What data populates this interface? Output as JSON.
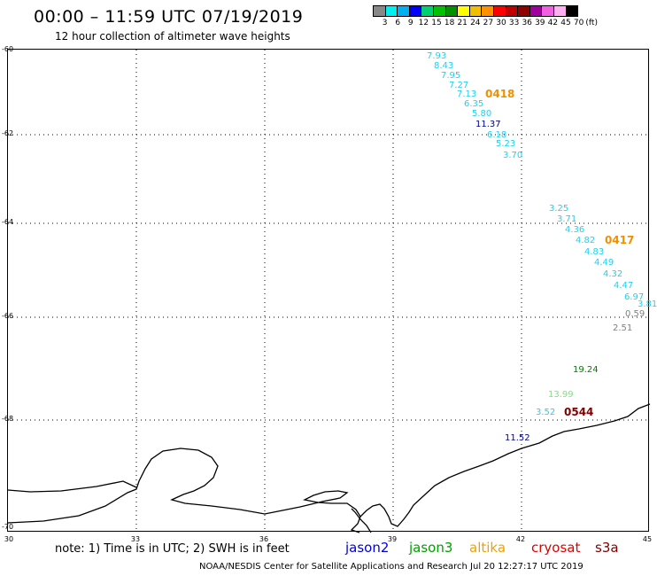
{
  "header": {
    "title": "00:00 – 11:59 UTC 07/19/2019",
    "subtitle": "12 hour collection of altimeter wave heights"
  },
  "colorbar": {
    "colors": [
      "#888888",
      "#00f0f0",
      "#00b0f0",
      "#0000ff",
      "#00d070",
      "#00c000",
      "#009000",
      "#ffff00",
      "#f0c000",
      "#ff9000",
      "#ff0000",
      "#c00000",
      "#900000",
      "#a000a0",
      "#f060e0",
      "#ffb0f0",
      "#000000"
    ],
    "labels": [
      "3",
      "6",
      "9",
      "12",
      "15",
      "18",
      "21",
      "24",
      "27",
      "30",
      "33",
      "36",
      "39",
      "42",
      "45",
      "70",
      "(ft)"
    ]
  },
  "axes": {
    "y_labels": [
      "-60",
      "-62",
      "-64",
      "-66",
      "-68",
      "-70"
    ],
    "x_labels": [
      "30",
      "33",
      "36",
      "39",
      "42",
      "45"
    ]
  },
  "observations": [
    {
      "text": "7.93",
      "color": "#20d0f0"
    },
    {
      "text": "8.43",
      "color": "#20d0f0"
    },
    {
      "text": "7.95",
      "color": "#20d0f0"
    },
    {
      "text": "7.27",
      "color": "#20d0f0"
    },
    {
      "text": "7.13",
      "color": "#20d0f0"
    },
    {
      "text": "6.35",
      "color": "#20d0f0"
    },
    {
      "text": "5.80",
      "color": "#20d0f0"
    },
    {
      "text": "11.37",
      "color": "#000080"
    },
    {
      "text": "6.18",
      "color": "#20d0f0"
    },
    {
      "text": "5.23",
      "color": "#20d0f0"
    },
    {
      "text": "3.70",
      "color": "#20d0f0"
    },
    {
      "text": "3.25",
      "color": "#20d0f0"
    },
    {
      "text": "3.71",
      "color": "#20d0f0"
    },
    {
      "text": "4.36",
      "color": "#20d0f0"
    },
    {
      "text": "4.82",
      "color": "#20d0f0"
    },
    {
      "text": "4.83",
      "color": "#20d0f0"
    },
    {
      "text": "4.49",
      "color": "#20d0f0"
    },
    {
      "text": "4.32",
      "color": "#20d0f0"
    },
    {
      "text": "4.47",
      "color": "#20d0f0"
    },
    {
      "text": "6.97",
      "color": "#20d0f0"
    },
    {
      "text": "3.81",
      "color": "#20d0f0"
    },
    {
      "text": "0.59",
      "color": "#808080"
    },
    {
      "text": "2.51",
      "color": "#808080"
    },
    {
      "text": "19.24",
      "color": "#008000"
    },
    {
      "text": "13.99",
      "color": "#80e080"
    },
    {
      "text": "3.52",
      "color": "#20d0f0"
    },
    {
      "text": "11.52",
      "color": "#0000a0"
    }
  ],
  "pass_labels": [
    {
      "text": "0418",
      "color": "#f09000"
    },
    {
      "text": "0417",
      "color": "#f09000"
    },
    {
      "text": "0544",
      "color": "#800000"
    }
  ],
  "note": "note: 1) Time is in UTC; 2) SWH is in feet",
  "satellites": [
    {
      "name": "jason2",
      "color": "#0000e0"
    },
    {
      "name": "jason3",
      "color": "#00a000"
    },
    {
      "name": "altika",
      "color": "#f0a000"
    },
    {
      "name": "cryosat",
      "color": "#e00000"
    },
    {
      "name": "s3a",
      "color": "#800000"
    }
  ],
  "footer": "NOAA/NESDIS Center for Satellite Applications and Research     Jul 20 12:27:17 UTC 2019"
}
